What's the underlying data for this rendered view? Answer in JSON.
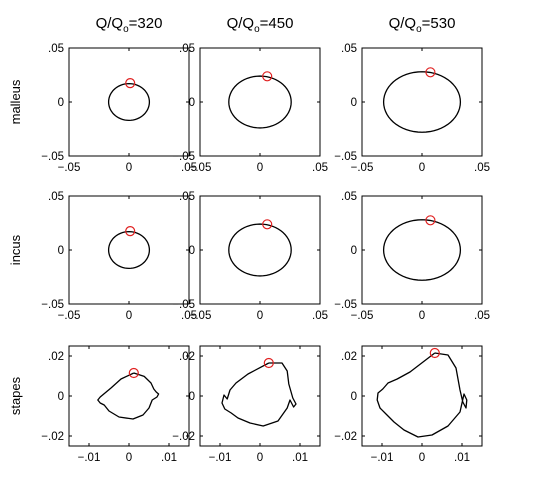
{
  "chart_data": {
    "type": "line",
    "columns": [
      {
        "prefix": "Q/Q",
        "sub": "o",
        "suffix": "=320"
      },
      {
        "prefix": "Q/Q",
        "sub": "o",
        "suffix": "=450"
      },
      {
        "prefix": "Q/Q",
        "sub": "o",
        "suffix": "=530"
      }
    ],
    "rows": [
      "malleus",
      "incus",
      "stapes"
    ],
    "colors": {
      "curve": "#000000",
      "marker": "#e02020"
    },
    "panels": [
      {
        "row": "malleus",
        "column": 0,
        "shape": "ellipse",
        "center": [
          0.0,
          0.0
        ],
        "radius": [
          0.017,
          0.017
        ],
        "marker": [
          0.001,
          0.0175
        ],
        "xlim": [
          -0.05,
          0.05
        ],
        "ylim": [
          -0.05,
          0.05
        ]
      },
      {
        "row": "malleus",
        "column": 1,
        "shape": "ellipse",
        "center": [
          0.0,
          0.0
        ],
        "radius": [
          0.026,
          0.024
        ],
        "marker": [
          0.006,
          0.0238
        ],
        "xlim": [
          -0.05,
          0.05
        ],
        "ylim": [
          -0.05,
          0.05
        ]
      },
      {
        "row": "malleus",
        "column": 2,
        "shape": "ellipse",
        "center": [
          0.0,
          0.0
        ],
        "radius": [
          0.032,
          0.028
        ],
        "marker": [
          0.007,
          0.0275
        ],
        "xlim": [
          -0.05,
          0.05
        ],
        "ylim": [
          -0.05,
          0.05
        ]
      },
      {
        "row": "incus",
        "column": 0,
        "shape": "ellipse",
        "center": [
          0.0,
          0.0
        ],
        "radius": [
          0.017,
          0.017
        ],
        "marker": [
          0.001,
          0.0175
        ],
        "xlim": [
          -0.05,
          0.05
        ],
        "ylim": [
          -0.05,
          0.05
        ]
      },
      {
        "row": "incus",
        "column": 1,
        "shape": "ellipse",
        "center": [
          0.0,
          0.0
        ],
        "radius": [
          0.026,
          0.024
        ],
        "marker": [
          0.006,
          0.0238
        ],
        "xlim": [
          -0.05,
          0.05
        ],
        "ylim": [
          -0.05,
          0.05
        ]
      },
      {
        "row": "incus",
        "column": 2,
        "shape": "ellipse",
        "center": [
          0.0,
          0.0
        ],
        "radius": [
          0.032,
          0.028
        ],
        "marker": [
          0.007,
          0.0275
        ],
        "xlim": [
          -0.05,
          0.05
        ],
        "ylim": [
          -0.05,
          0.05
        ]
      },
      {
        "row": "stapes",
        "column": 0,
        "shape": "orbit",
        "xlim": [
          -0.015,
          0.015
        ],
        "ylim": [
          -0.025,
          0.025
        ],
        "marker": [
          0.0012,
          0.0115
        ],
        "points": [
          [
            0.0012,
            0.0115
          ],
          [
            0.0038,
            0.0098
          ],
          [
            0.0055,
            0.0065
          ],
          [
            0.0062,
            0.0035
          ],
          [
            0.0068,
            0.002
          ],
          [
            0.0074,
            0.001
          ],
          [
            0.007,
            -0.0005
          ],
          [
            0.0058,
            -0.002
          ],
          [
            0.005,
            -0.006
          ],
          [
            0.0035,
            -0.0095
          ],
          [
            0.001,
            -0.0115
          ],
          [
            -0.0025,
            -0.0105
          ],
          [
            -0.005,
            -0.0075
          ],
          [
            -0.0062,
            -0.0045
          ],
          [
            -0.0072,
            -0.0035
          ],
          [
            -0.0078,
            -0.002
          ],
          [
            -0.0072,
            -0.0005
          ],
          [
            -0.006,
            0.0015
          ],
          [
            -0.0045,
            0.004
          ],
          [
            -0.002,
            0.0085
          ],
          [
            0.0012,
            0.0115
          ]
        ]
      },
      {
        "row": "stapes",
        "column": 1,
        "shape": "orbit",
        "xlim": [
          -0.015,
          0.015
        ],
        "ylim": [
          -0.025,
          0.025
        ],
        "marker": [
          0.0022,
          0.0165
        ],
        "points": [
          [
            0.0022,
            0.0165
          ],
          [
            0.0055,
            0.0165
          ],
          [
            0.0068,
            0.0125
          ],
          [
            0.0072,
            0.006
          ],
          [
            0.0082,
            -0.001
          ],
          [
            0.009,
            -0.004
          ],
          [
            0.0084,
            -0.0055
          ],
          [
            0.0075,
            -0.002
          ],
          [
            0.0068,
            -0.006
          ],
          [
            0.0045,
            -0.0125
          ],
          [
            0.0008,
            -0.015
          ],
          [
            -0.0025,
            -0.0135
          ],
          [
            -0.0055,
            -0.011
          ],
          [
            -0.0072,
            -0.0085
          ],
          [
            -0.0088,
            -0.0065
          ],
          [
            -0.0095,
            -0.0035
          ],
          [
            -0.009,
            0.0005
          ],
          [
            -0.0082,
            -0.0015
          ],
          [
            -0.0075,
            0.003
          ],
          [
            -0.006,
            0.0065
          ],
          [
            -0.003,
            0.011
          ],
          [
            0.0022,
            0.0165
          ]
        ]
      },
      {
        "row": "stapes",
        "column": 2,
        "shape": "orbit",
        "xlim": [
          -0.015,
          0.015
        ],
        "ylim": [
          -0.025,
          0.025
        ],
        "marker": [
          0.0032,
          0.0215
        ],
        "points": [
          [
            0.0032,
            0.0215
          ],
          [
            0.0065,
            0.0205
          ],
          [
            0.0085,
            0.014
          ],
          [
            0.0095,
            0.003
          ],
          [
            0.0102,
            -0.003
          ],
          [
            0.011,
            -0.006
          ],
          [
            0.0112,
            -0.002
          ],
          [
            0.0105,
            0.001
          ],
          [
            0.0095,
            -0.008
          ],
          [
            0.0065,
            -0.015
          ],
          [
            0.0025,
            -0.0195
          ],
          [
            -0.001,
            -0.0205
          ],
          [
            -0.0045,
            -0.017
          ],
          [
            -0.007,
            -0.013
          ],
          [
            -0.009,
            -0.009
          ],
          [
            -0.0105,
            -0.006
          ],
          [
            -0.0112,
            -0.002
          ],
          [
            -0.011,
            0.0015
          ],
          [
            -0.0098,
            0.0035
          ],
          [
            -0.0085,
            0.0065
          ],
          [
            -0.0062,
            0.0085
          ],
          [
            -0.003,
            0.012
          ],
          [
            0.0032,
            0.0215
          ]
        ]
      }
    ]
  }
}
